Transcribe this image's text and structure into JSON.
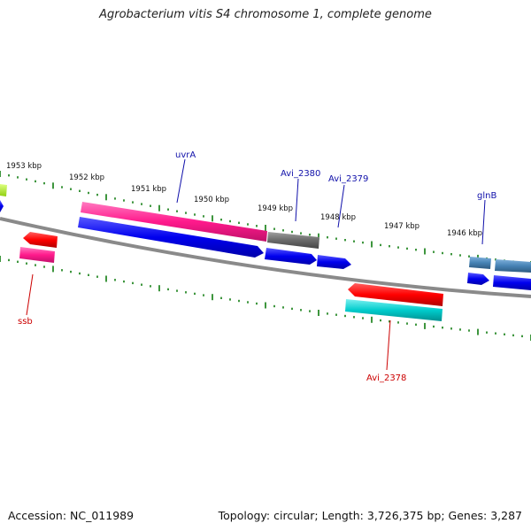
{
  "title": "Agrobacterium vitis S4 chromosome 1, complete genome",
  "footer": {
    "accession": "Accession: NC_011989",
    "summary": "Topology: circular; Length: 3,726,375 bp; Genes: 3,287"
  },
  "ticks": [
    {
      "label": "1953 kbp"
    },
    {
      "label": "1952 kbp"
    },
    {
      "label": "1951 kbp"
    },
    {
      "label": "1950 kbp"
    },
    {
      "label": "1949 kbp"
    },
    {
      "label": "1948 kbp"
    },
    {
      "label": "1947 kbp"
    },
    {
      "label": "1946 kbp"
    }
  ],
  "genes": [
    {
      "name": "uvrA",
      "color": "#1010aa"
    },
    {
      "name": "Avi_2380",
      "color": "#1010aa"
    },
    {
      "name": "Avi_2379",
      "color": "#1010aa"
    },
    {
      "name": "glnB",
      "color": "#1010aa"
    },
    {
      "name": "ssb",
      "color": "#cc0000"
    },
    {
      "name": "Avi_2378",
      "color": "#cc0000"
    }
  ],
  "colors": {
    "backbone": "#8a8a8a",
    "tick": "#2a8a2a",
    "gene_forward": "#0000ee",
    "gene_reverse": "#ff0000",
    "feature_magenta": "#ff1a8c",
    "feature_gray": "#6a6a6a",
    "feature_cyan": "#00cccc",
    "feature_steel": "#4682b4",
    "feature_lime": "#b3ff1a"
  }
}
